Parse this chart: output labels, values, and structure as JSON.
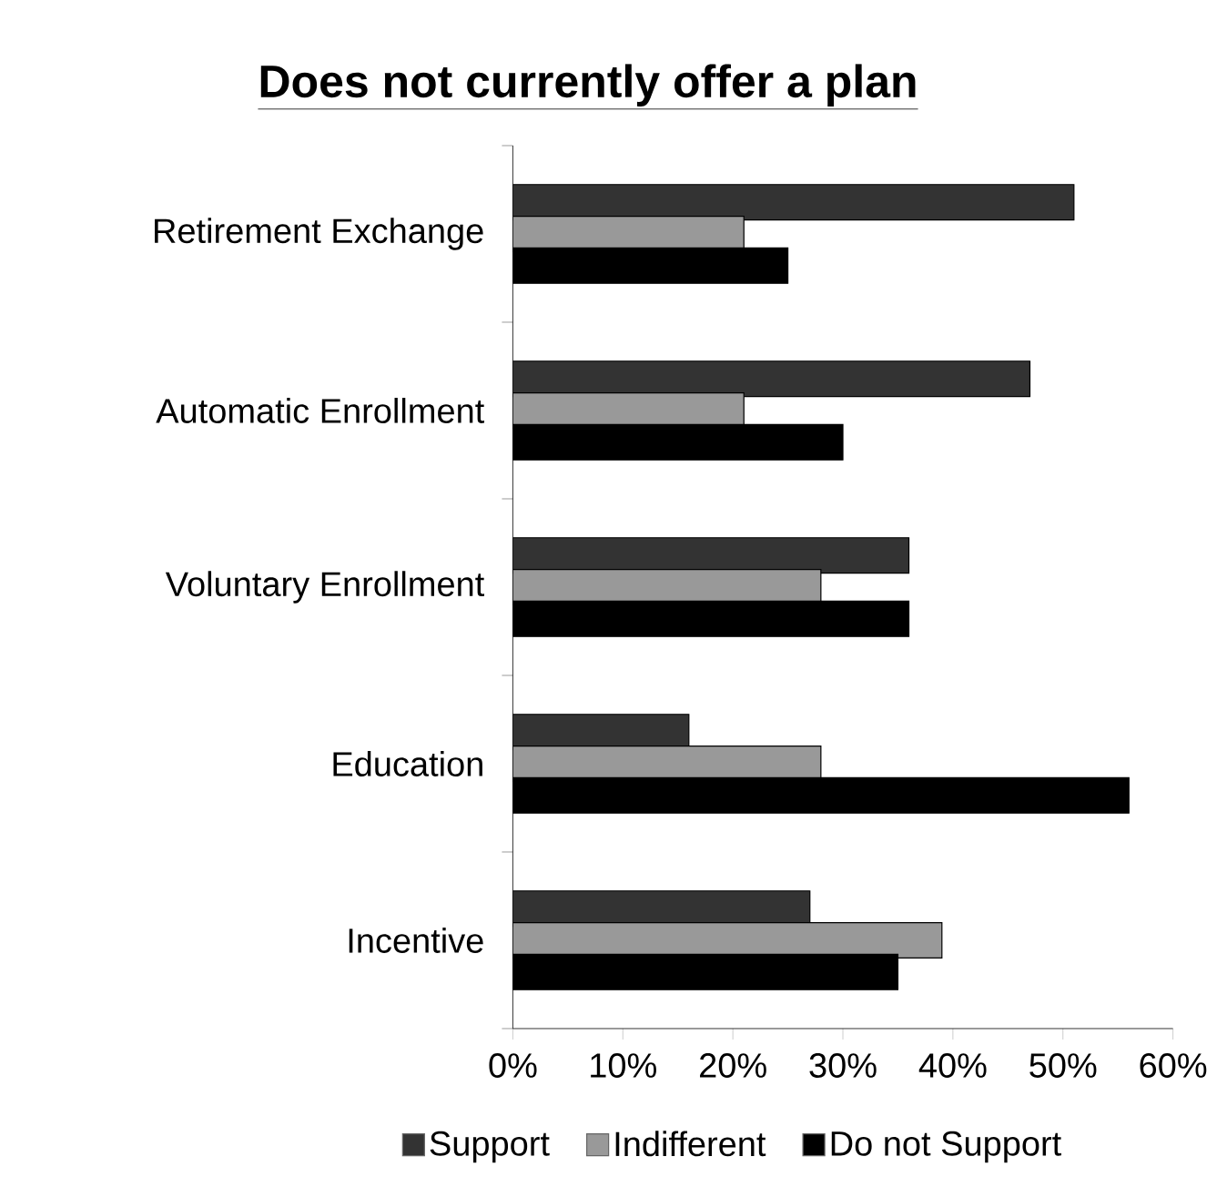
{
  "chart_data": {
    "type": "bar",
    "orientation": "horizontal",
    "title": "Does not currently offer a plan",
    "categories": [
      "Retirement Exchange",
      "Automatic Enrollment",
      "Voluntary Enrollment",
      "Education",
      "Incentive"
    ],
    "series": [
      {
        "name": "Support",
        "color": "#333333",
        "values": [
          51,
          47,
          36,
          16,
          27
        ]
      },
      {
        "name": "Indifferent",
        "color": "#999999",
        "values": [
          21,
          21,
          28,
          28,
          39
        ]
      },
      {
        "name": "Do not Support",
        "color": "#000000",
        "values": [
          25,
          30,
          36,
          56,
          35
        ]
      }
    ],
    "xlim": [
      0,
      60
    ],
    "xticks": [
      {
        "value": 0,
        "label": "0%"
      },
      {
        "value": 10,
        "label": "10%"
      },
      {
        "value": 20,
        "label": "20%"
      },
      {
        "value": 30,
        "label": "30%"
      },
      {
        "value": 40,
        "label": "40%"
      },
      {
        "value": 50,
        "label": "50%"
      },
      {
        "value": 60,
        "label": "60%"
      }
    ],
    "legend": "bottom"
  }
}
